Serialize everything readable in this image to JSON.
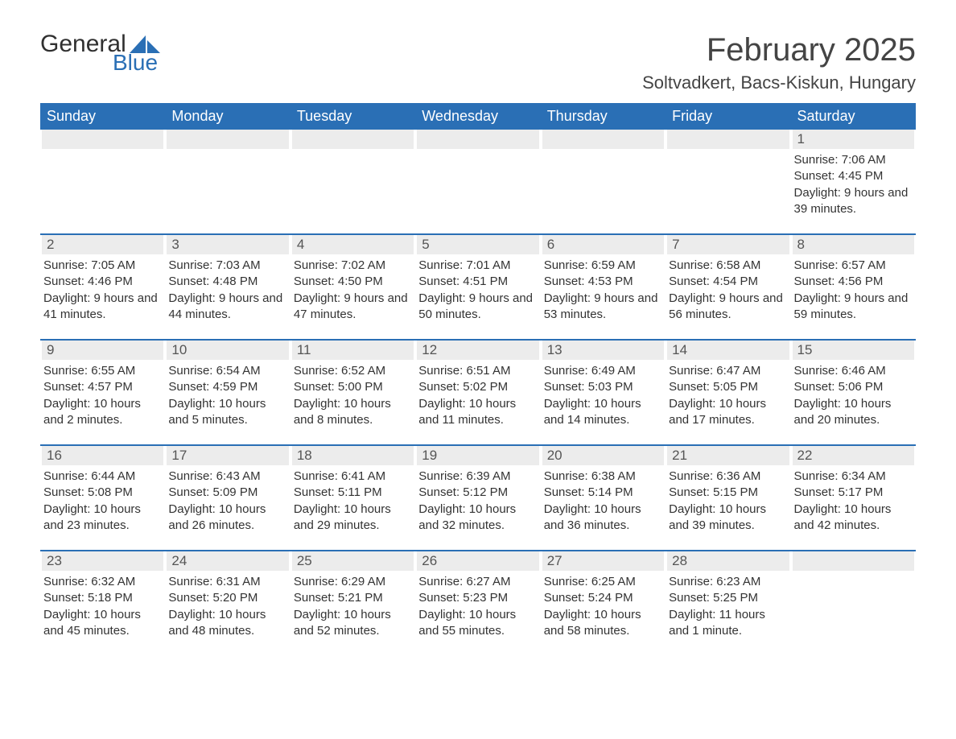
{
  "logo": {
    "word1": "General",
    "word2": "Blue",
    "sail_color": "#2a6fb5"
  },
  "title": "February 2025",
  "location": "Soltvadkert, Bacs-Kiskun, Hungary",
  "colors": {
    "header_bg": "#2a6fb5",
    "grey_bar": "#ececec",
    "text": "#333333"
  },
  "dow": [
    "Sunday",
    "Monday",
    "Tuesday",
    "Wednesday",
    "Thursday",
    "Friday",
    "Saturday"
  ],
  "weeks": [
    [
      {
        "blank": true
      },
      {
        "blank": true
      },
      {
        "blank": true
      },
      {
        "blank": true
      },
      {
        "blank": true
      },
      {
        "blank": true
      },
      {
        "n": "1",
        "sr": "Sunrise: 7:06 AM",
        "ss": "Sunset: 4:45 PM",
        "dl": "Daylight: 9 hours and 39 minutes."
      }
    ],
    [
      {
        "n": "2",
        "sr": "Sunrise: 7:05 AM",
        "ss": "Sunset: 4:46 PM",
        "dl": "Daylight: 9 hours and 41 minutes."
      },
      {
        "n": "3",
        "sr": "Sunrise: 7:03 AM",
        "ss": "Sunset: 4:48 PM",
        "dl": "Daylight: 9 hours and 44 minutes."
      },
      {
        "n": "4",
        "sr": "Sunrise: 7:02 AM",
        "ss": "Sunset: 4:50 PM",
        "dl": "Daylight: 9 hours and 47 minutes."
      },
      {
        "n": "5",
        "sr": "Sunrise: 7:01 AM",
        "ss": "Sunset: 4:51 PM",
        "dl": "Daylight: 9 hours and 50 minutes."
      },
      {
        "n": "6",
        "sr": "Sunrise: 6:59 AM",
        "ss": "Sunset: 4:53 PM",
        "dl": "Daylight: 9 hours and 53 minutes."
      },
      {
        "n": "7",
        "sr": "Sunrise: 6:58 AM",
        "ss": "Sunset: 4:54 PM",
        "dl": "Daylight: 9 hours and 56 minutes."
      },
      {
        "n": "8",
        "sr": "Sunrise: 6:57 AM",
        "ss": "Sunset: 4:56 PM",
        "dl": "Daylight: 9 hours and 59 minutes."
      }
    ],
    [
      {
        "n": "9",
        "sr": "Sunrise: 6:55 AM",
        "ss": "Sunset: 4:57 PM",
        "dl": "Daylight: 10 hours and 2 minutes."
      },
      {
        "n": "10",
        "sr": "Sunrise: 6:54 AM",
        "ss": "Sunset: 4:59 PM",
        "dl": "Daylight: 10 hours and 5 minutes."
      },
      {
        "n": "11",
        "sr": "Sunrise: 6:52 AM",
        "ss": "Sunset: 5:00 PM",
        "dl": "Daylight: 10 hours and 8 minutes."
      },
      {
        "n": "12",
        "sr": "Sunrise: 6:51 AM",
        "ss": "Sunset: 5:02 PM",
        "dl": "Daylight: 10 hours and 11 minutes."
      },
      {
        "n": "13",
        "sr": "Sunrise: 6:49 AM",
        "ss": "Sunset: 5:03 PM",
        "dl": "Daylight: 10 hours and 14 minutes."
      },
      {
        "n": "14",
        "sr": "Sunrise: 6:47 AM",
        "ss": "Sunset: 5:05 PM",
        "dl": "Daylight: 10 hours and 17 minutes."
      },
      {
        "n": "15",
        "sr": "Sunrise: 6:46 AM",
        "ss": "Sunset: 5:06 PM",
        "dl": "Daylight: 10 hours and 20 minutes."
      }
    ],
    [
      {
        "n": "16",
        "sr": "Sunrise: 6:44 AM",
        "ss": "Sunset: 5:08 PM",
        "dl": "Daylight: 10 hours and 23 minutes."
      },
      {
        "n": "17",
        "sr": "Sunrise: 6:43 AM",
        "ss": "Sunset: 5:09 PM",
        "dl": "Daylight: 10 hours and 26 minutes."
      },
      {
        "n": "18",
        "sr": "Sunrise: 6:41 AM",
        "ss": "Sunset: 5:11 PM",
        "dl": "Daylight: 10 hours and 29 minutes."
      },
      {
        "n": "19",
        "sr": "Sunrise: 6:39 AM",
        "ss": "Sunset: 5:12 PM",
        "dl": "Daylight: 10 hours and 32 minutes."
      },
      {
        "n": "20",
        "sr": "Sunrise: 6:38 AM",
        "ss": "Sunset: 5:14 PM",
        "dl": "Daylight: 10 hours and 36 minutes."
      },
      {
        "n": "21",
        "sr": "Sunrise: 6:36 AM",
        "ss": "Sunset: 5:15 PM",
        "dl": "Daylight: 10 hours and 39 minutes."
      },
      {
        "n": "22",
        "sr": "Sunrise: 6:34 AM",
        "ss": "Sunset: 5:17 PM",
        "dl": "Daylight: 10 hours and 42 minutes."
      }
    ],
    [
      {
        "n": "23",
        "sr": "Sunrise: 6:32 AM",
        "ss": "Sunset: 5:18 PM",
        "dl": "Daylight: 10 hours and 45 minutes."
      },
      {
        "n": "24",
        "sr": "Sunrise: 6:31 AM",
        "ss": "Sunset: 5:20 PM",
        "dl": "Daylight: 10 hours and 48 minutes."
      },
      {
        "n": "25",
        "sr": "Sunrise: 6:29 AM",
        "ss": "Sunset: 5:21 PM",
        "dl": "Daylight: 10 hours and 52 minutes."
      },
      {
        "n": "26",
        "sr": "Sunrise: 6:27 AM",
        "ss": "Sunset: 5:23 PM",
        "dl": "Daylight: 10 hours and 55 minutes."
      },
      {
        "n": "27",
        "sr": "Sunrise: 6:25 AM",
        "ss": "Sunset: 5:24 PM",
        "dl": "Daylight: 10 hours and 58 minutes."
      },
      {
        "n": "28",
        "sr": "Sunrise: 6:23 AM",
        "ss": "Sunset: 5:25 PM",
        "dl": "Daylight: 11 hours and 1 minute."
      },
      {
        "blank": true
      }
    ]
  ]
}
